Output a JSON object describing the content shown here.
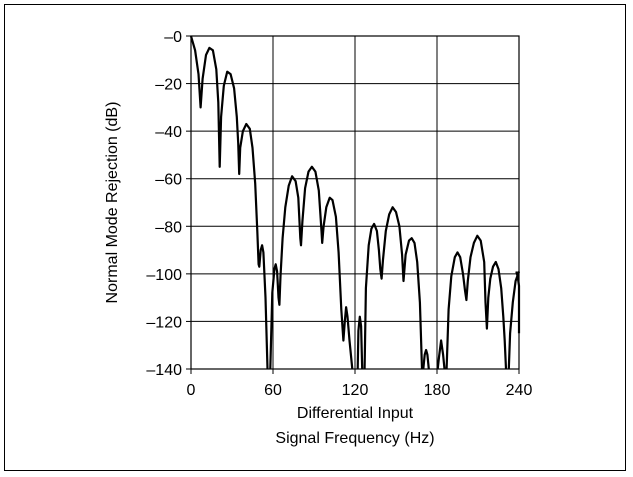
{
  "chart_data": {
    "type": "line",
    "title": "",
    "xlabel": [
      "Differential Input",
      "Signal Frequency (Hz)"
    ],
    "ylabel": "Normal Mode Rejection (dB)",
    "xlim": [
      0,
      240
    ],
    "ylim": [
      -140,
      0
    ],
    "xticks": [
      0,
      60,
      120,
      180,
      240
    ],
    "xtick_labels": [
      "0",
      "60",
      "120",
      "180",
      "240"
    ],
    "yticks": [
      0,
      -20,
      -40,
      -60,
      -80,
      -100,
      -120,
      -140
    ],
    "ytick_labels": [
      "–0",
      "–20",
      "–40",
      "–60",
      "–80",
      "–100",
      "–120",
      "–140"
    ],
    "grid": true,
    "line_color": "#000000",
    "series": [
      {
        "segments": [
          [
            [
              0,
              0
            ],
            [
              3,
              -6
            ],
            [
              5.5,
              -16
            ],
            [
              7,
              -30
            ],
            [
              8.5,
              -18
            ],
            [
              11,
              -8
            ],
            [
              13.5,
              -5
            ],
            [
              16,
              -6
            ],
            [
              18.5,
              -14
            ],
            [
              20,
              -28
            ],
            [
              21,
              -55
            ],
            [
              22,
              -34
            ],
            [
              24,
              -21
            ],
            [
              26.5,
              -15
            ],
            [
              29,
              -16
            ],
            [
              31.5,
              -22
            ],
            [
              33.5,
              -34
            ],
            [
              34.5,
              -45
            ],
            [
              35.3,
              -58
            ],
            [
              36,
              -47
            ],
            [
              38,
              -40
            ],
            [
              40.5,
              -37
            ],
            [
              43,
              -39
            ],
            [
              45,
              -47
            ],
            [
              47,
              -62
            ],
            [
              48.5,
              -82
            ],
            [
              49.5,
              -96
            ],
            [
              50,
              -97
            ],
            [
              51,
              -90
            ],
            [
              52,
              -88
            ],
            [
              53,
              -91
            ],
            [
              54.5,
              -110
            ],
            [
              56,
              -140
            ]
          ],
          [
            [
              58,
              -140
            ],
            [
              59.5,
              -108
            ],
            [
              61,
              -98
            ],
            [
              62,
              -96
            ],
            [
              63,
              -99
            ],
            [
              64,
              -110
            ],
            [
              64.7,
              -113
            ],
            [
              65.5,
              -101
            ],
            [
              67,
              -85
            ],
            [
              69,
              -72
            ],
            [
              71.5,
              -63
            ],
            [
              74,
              -59
            ],
            [
              76.5,
              -61
            ],
            [
              78.5,
              -68
            ],
            [
              80,
              -85
            ],
            [
              80.5,
              -88
            ],
            [
              81.5,
              -78
            ],
            [
              83.5,
              -64
            ],
            [
              86,
              -57
            ],
            [
              88.5,
              -55
            ],
            [
              91,
              -57
            ],
            [
              93.5,
              -65
            ],
            [
              95.5,
              -82
            ],
            [
              96,
              -87
            ],
            [
              97,
              -80
            ],
            [
              99,
              -72
            ],
            [
              101.5,
              -68
            ],
            [
              103.5,
              -69
            ],
            [
              106,
              -76
            ],
            [
              108,
              -91
            ],
            [
              110,
              -115
            ],
            [
              111.5,
              -128
            ],
            [
              112.5,
              -120
            ],
            [
              113.5,
              -114
            ],
            [
              114.5,
              -118
            ],
            [
              116,
              -128
            ],
            [
              118,
              -140
            ]
          ],
          [
            [
              122,
              -140
            ],
            [
              122.5,
              -124
            ],
            [
              123.5,
              -118
            ],
            [
              124.5,
              -122
            ],
            [
              125.3,
              -140
            ]
          ],
          [
            [
              127,
              -140
            ],
            [
              128,
              -106
            ],
            [
              130,
              -88
            ],
            [
              132,
              -81
            ],
            [
              134,
              -79
            ],
            [
              136,
              -82
            ],
            [
              137.5,
              -90
            ],
            [
              138.5,
              -98
            ],
            [
              139.5,
              -102
            ],
            [
              140.5,
              -94
            ],
            [
              142.5,
              -82
            ],
            [
              145,
              -75
            ],
            [
              147.5,
              -72
            ],
            [
              150,
              -74
            ],
            [
              152.5,
              -80
            ],
            [
              154.5,
              -92
            ],
            [
              155.5,
              -103
            ],
            [
              157,
              -92
            ],
            [
              159.5,
              -86
            ],
            [
              161.5,
              -85
            ],
            [
              163.5,
              -87
            ],
            [
              165.5,
              -95
            ],
            [
              167.5,
              -112
            ],
            [
              169,
              -140
            ]
          ],
          [
            [
              170,
              -140
            ],
            [
              171,
              -134
            ],
            [
              172,
              -132
            ],
            [
              173,
              -134
            ],
            [
              174,
              -140
            ]
          ],
          [
            [
              180.5,
              -140
            ],
            [
              181.5,
              -135
            ],
            [
              183,
              -128
            ],
            [
              184.5,
              -134
            ],
            [
              185.5,
              -140
            ]
          ],
          [
            [
              187,
              -140
            ],
            [
              188.5,
              -115
            ],
            [
              190.5,
              -101
            ],
            [
              193,
              -93
            ],
            [
              195,
              -91
            ],
            [
              197,
              -93
            ],
            [
              199,
              -100
            ],
            [
              200.5,
              -107
            ],
            [
              201.5,
              -111
            ],
            [
              202.5,
              -103
            ],
            [
              204.5,
              -93
            ],
            [
              207,
              -87
            ],
            [
              209.5,
              -84
            ],
            [
              212,
              -86
            ],
            [
              214.5,
              -95
            ],
            [
              215.5,
              -112
            ],
            [
              216.5,
              -123
            ],
            [
              217.5,
              -110
            ],
            [
              219,
              -102
            ],
            [
              221,
              -97
            ],
            [
              223,
              -95
            ],
            [
              225,
              -98
            ],
            [
              227,
              -106
            ],
            [
              228.5,
              -118
            ],
            [
              229.5,
              -128
            ],
            [
              230.5,
              -140
            ]
          ],
          [
            [
              232.5,
              -140
            ],
            [
              233.5,
              -125
            ],
            [
              235.5,
              -112
            ],
            [
              237.5,
              -103
            ],
            [
              240,
              -99
            ]
          ],
          [
            [
              238,
              -99
            ],
            [
              239,
              -101
            ],
            [
              240,
              -105
            ],
            [
              240,
              -125
            ]
          ]
        ]
      }
    ]
  }
}
